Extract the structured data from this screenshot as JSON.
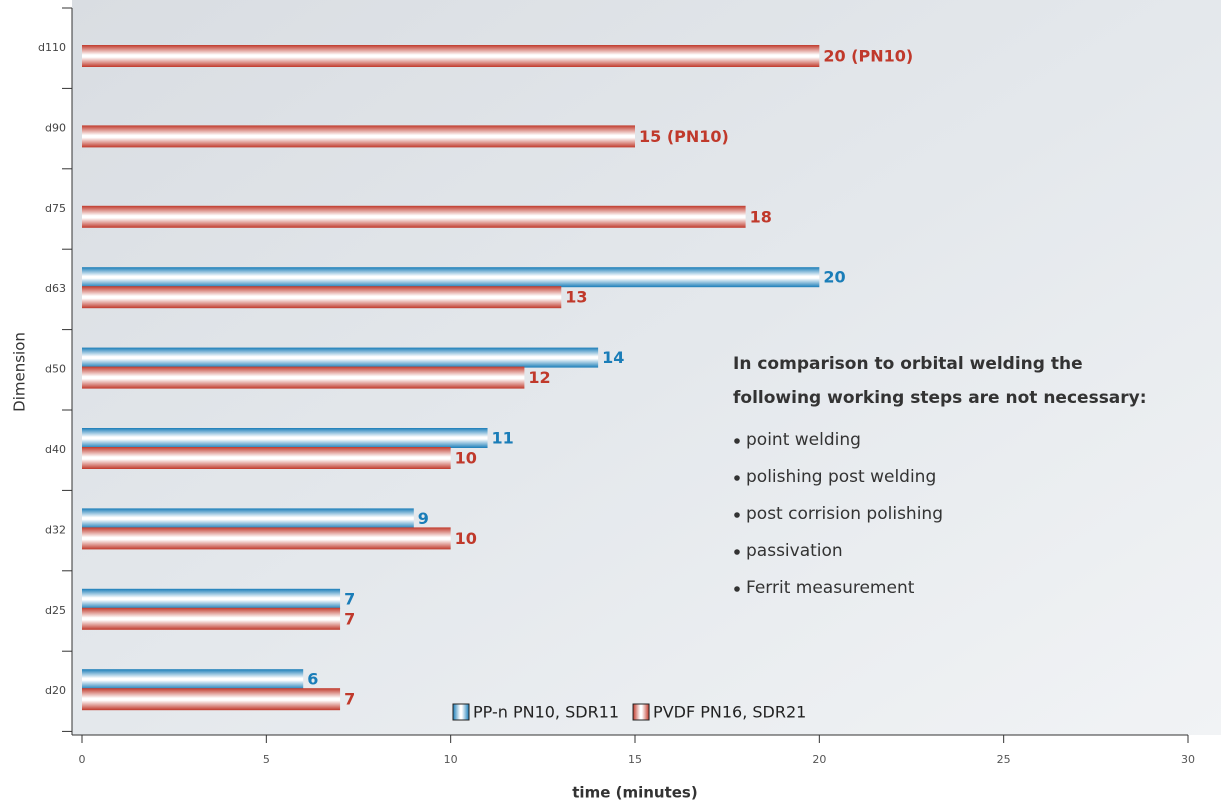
{
  "chart_data": {
    "type": "barh",
    "categories": [
      "d110",
      "d90",
      "d75",
      "d63",
      "d50",
      "d40",
      "d32",
      "d25",
      "d20"
    ],
    "series": [
      {
        "name": "PP-n PN10, SDR11",
        "color": "#1a7db8",
        "values": [
          null,
          null,
          null,
          20,
          14,
          11,
          9,
          7,
          6
        ]
      },
      {
        "name": "PVDF PN16, SDR21",
        "color": "#c0392b",
        "values": [
          20,
          15,
          18,
          13,
          12,
          10,
          10,
          7,
          7
        ],
        "value_labels": [
          "20 (PN10)",
          "15 (PN10)",
          "18",
          "13",
          "12",
          "10",
          "10",
          "7",
          "7"
        ]
      }
    ],
    "xlim": [
      0,
      30
    ],
    "xticks": [
      0,
      5,
      10,
      15,
      20,
      25,
      30
    ],
    "xlabel": "time (minutes)",
    "ylabel": "Dimension",
    "annotation": {
      "title": [
        "In comparison to orbital welding the",
        "following working steps are not necessary:"
      ],
      "items": [
        "point welding",
        "polishing post welding",
        "post corrision polishing",
        "passivation",
        "Ferrit measurement"
      ]
    }
  }
}
